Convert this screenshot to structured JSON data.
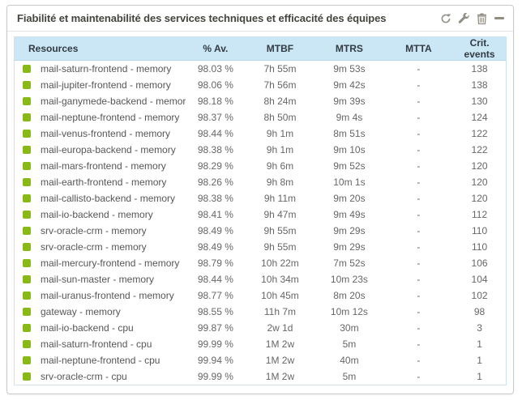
{
  "widget": {
    "title": "Fiabilité et maintenabilité des services techniques et efficacité des équipes",
    "toolbar": {
      "icons": [
        "refresh-icon",
        "wrench-icon",
        "trash-icon",
        "collapse-icon"
      ]
    }
  },
  "colors": {
    "status_ok": "#88b917",
    "header_bg": "#cbe6f5",
    "icon_gray": "#8f8d84"
  },
  "table": {
    "columns": [
      "Resources",
      "% Av.",
      "MTBF",
      "MTRS",
      "MTTA",
      "Crit. events"
    ],
    "rows": [
      {
        "resource": "mail-saturn-frontend - memory",
        "availability": "98.03 %",
        "mtbf": "7h 55m",
        "mtrs": "9m 53s",
        "mtta": "-",
        "crit_events": "138"
      },
      {
        "resource": "mail-jupiter-frontend - memory",
        "availability": "98.06 %",
        "mtbf": "7h 56m",
        "mtrs": "9m 42s",
        "mtta": "-",
        "crit_events": "138"
      },
      {
        "resource": "mail-ganymede-backend - memory",
        "availability": "98.18 %",
        "mtbf": "8h 24m",
        "mtrs": "9m 39s",
        "mtta": "-",
        "crit_events": "130"
      },
      {
        "resource": "mail-neptune-frontend - memory",
        "availability": "98.37 %",
        "mtbf": "8h 50m",
        "mtrs": "9m 4s",
        "mtta": "-",
        "crit_events": "124"
      },
      {
        "resource": "mail-venus-frontend - memory",
        "availability": "98.44 %",
        "mtbf": "9h 1m",
        "mtrs": "8m 51s",
        "mtta": "-",
        "crit_events": "122"
      },
      {
        "resource": "mail-europa-backend - memory",
        "availability": "98.38 %",
        "mtbf": "9h 1m",
        "mtrs": "9m 10s",
        "mtta": "-",
        "crit_events": "122"
      },
      {
        "resource": "mail-mars-frontend - memory",
        "availability": "98.29 %",
        "mtbf": "9h 6m",
        "mtrs": "9m 52s",
        "mtta": "-",
        "crit_events": "120"
      },
      {
        "resource": "mail-earth-frontend - memory",
        "availability": "98.26 %",
        "mtbf": "9h 8m",
        "mtrs": "10m 1s",
        "mtta": "-",
        "crit_events": "120"
      },
      {
        "resource": "mail-callisto-backend - memory",
        "availability": "98.38 %",
        "mtbf": "9h 11m",
        "mtrs": "9m 20s",
        "mtta": "-",
        "crit_events": "120"
      },
      {
        "resource": "mail-io-backend - memory",
        "availability": "98.41 %",
        "mtbf": "9h 47m",
        "mtrs": "9m 49s",
        "mtta": "-",
        "crit_events": "112"
      },
      {
        "resource": "srv-oracle-crm - memory",
        "availability": "98.49 %",
        "mtbf": "9h 55m",
        "mtrs": "9m 29s",
        "mtta": "-",
        "crit_events": "110"
      },
      {
        "resource": "srv-oracle-crm - memory",
        "availability": "98.49 %",
        "mtbf": "9h 55m",
        "mtrs": "9m 29s",
        "mtta": "-",
        "crit_events": "110"
      },
      {
        "resource": "mail-mercury-frontend - memory",
        "availability": "98.79 %",
        "mtbf": "10h 22m",
        "mtrs": "7m 52s",
        "mtta": "-",
        "crit_events": "106"
      },
      {
        "resource": "mail-sun-master - memory",
        "availability": "98.44 %",
        "mtbf": "10h 34m",
        "mtrs": "10m 23s",
        "mtta": "-",
        "crit_events": "104"
      },
      {
        "resource": "mail-uranus-frontend - memory",
        "availability": "98.77 %",
        "mtbf": "10h 45m",
        "mtrs": "8m 20s",
        "mtta": "-",
        "crit_events": "102"
      },
      {
        "resource": "gateway - memory",
        "availability": "98.55 %",
        "mtbf": "11h 7m",
        "mtrs": "10m 12s",
        "mtta": "-",
        "crit_events": "98"
      },
      {
        "resource": "mail-io-backend - cpu",
        "availability": "99.87 %",
        "mtbf": "2w 1d",
        "mtrs": "30m",
        "mtta": "-",
        "crit_events": "3"
      },
      {
        "resource": "mail-saturn-frontend - cpu",
        "availability": "99.99 %",
        "mtbf": "1M 2w",
        "mtrs": "5m",
        "mtta": "-",
        "crit_events": "1"
      },
      {
        "resource": "mail-neptune-frontend - cpu",
        "availability": "99.94 %",
        "mtbf": "1M 2w",
        "mtrs": "40m",
        "mtta": "-",
        "crit_events": "1"
      },
      {
        "resource": "srv-oracle-crm - cpu",
        "availability": "99.99 %",
        "mtbf": "1M 2w",
        "mtrs": "5m",
        "mtta": "-",
        "crit_events": "1"
      }
    ]
  }
}
